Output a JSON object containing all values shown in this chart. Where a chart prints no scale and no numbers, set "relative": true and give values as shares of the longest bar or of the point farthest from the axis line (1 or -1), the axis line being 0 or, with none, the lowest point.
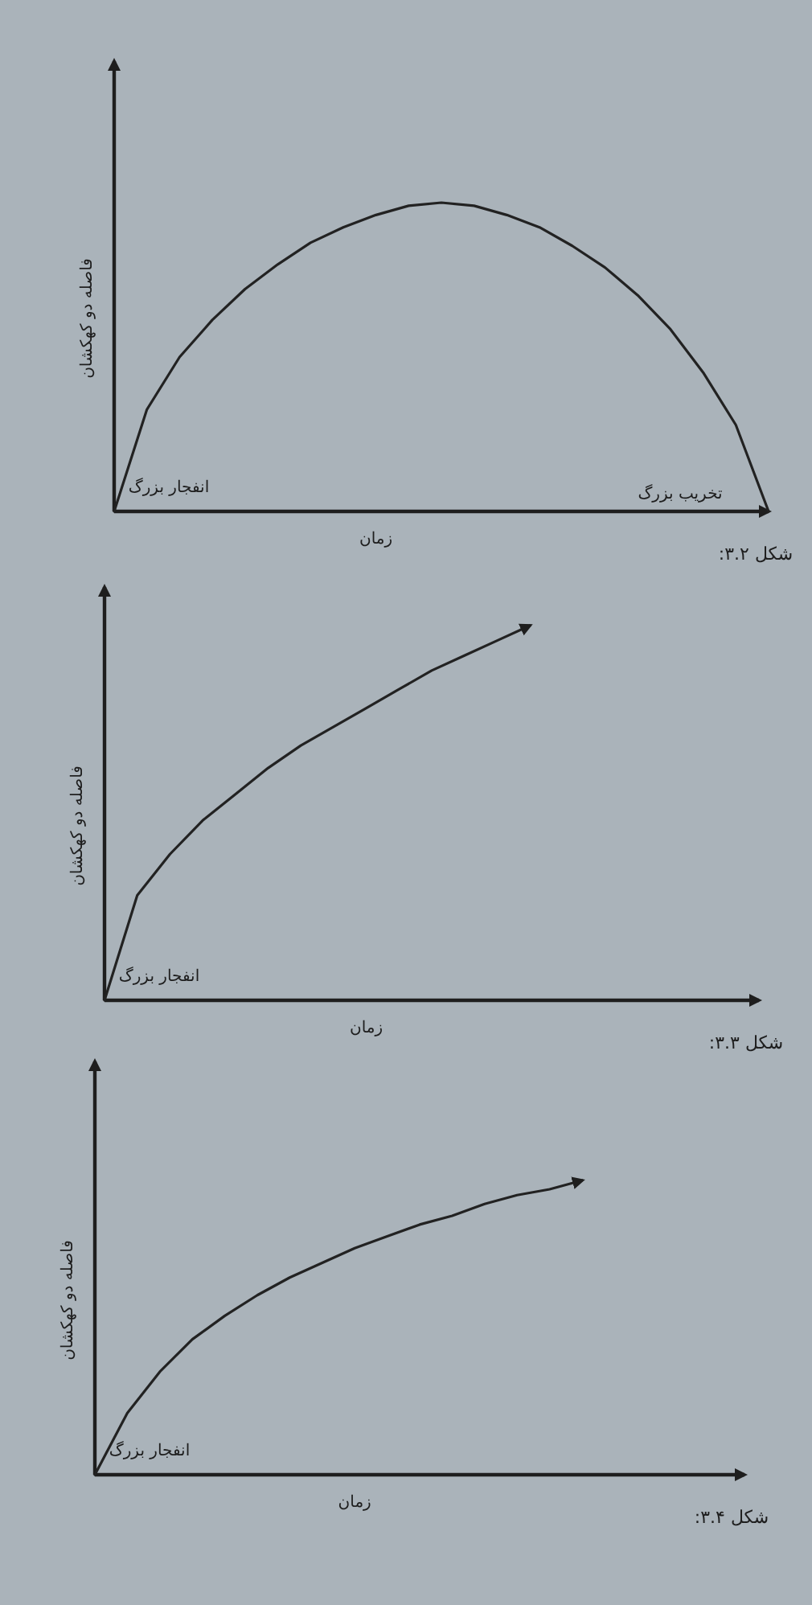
{
  "chart_data": [
    {
      "type": "line",
      "relative": true,
      "xlabel": "زمان",
      "ylabel": "فاصله دو کهکشان",
      "annotations": [
        "انفجار بزرگ",
        "تخریب بزرگ",
        "شکل ۳.۲:"
      ],
      "categories": [
        null,
        null,
        null,
        null,
        null,
        null,
        null,
        null,
        null,
        null,
        null,
        null,
        null,
        null,
        null,
        null,
        null,
        null,
        null,
        null,
        null
      ],
      "series": [
        {
          "color": "#222222",
          "values": [
            0,
            0.33,
            0.5,
            0.62,
            0.72,
            0.8,
            0.87,
            0.92,
            0.96,
            0.99,
            1,
            0.99,
            0.96,
            0.92,
            0.86,
            0.79,
            0.7,
            0.59,
            0.45,
            0.28,
            0
          ]
        }
      ]
    },
    {
      "type": "line",
      "relative": true,
      "xlabel": "زمان",
      "ylabel": "فاصله دو کهکشان",
      "annotations": [
        "انفجار بزرگ",
        "شکل ۳.۳:"
      ],
      "categories": [
        null,
        null,
        null,
        null,
        null,
        null,
        null,
        null,
        null,
        null,
        null,
        null,
        null,
        null,
        null,
        null,
        null,
        null,
        null,
        null,
        null
      ],
      "series": [
        {
          "color": "#222222",
          "values": [
            0,
            0.28,
            0.39,
            0.48,
            0.55,
            0.62,
            0.68,
            0.73,
            0.78,
            0.83,
            0.88,
            0.92,
            0.96,
            1,
            null,
            null,
            null,
            null,
            null,
            null,
            null
          ]
        }
      ]
    },
    {
      "type": "line",
      "relative": true,
      "xlabel": "زمان",
      "ylabel": "فاصله دو کهکشان",
      "annotations": [
        "انفجار بزرگ",
        "شکل ۳.۴:"
      ],
      "categories": [
        null,
        null,
        null,
        null,
        null,
        null,
        null,
        null,
        null,
        null,
        null,
        null,
        null,
        null,
        null,
        null,
        null,
        null,
        null,
        null,
        null
      ],
      "series": [
        {
          "color": "#222222",
          "values": [
            0,
            0.21,
            0.35,
            0.46,
            0.54,
            0.61,
            0.67,
            0.72,
            0.77,
            0.81,
            0.85,
            0.88,
            0.92,
            0.95,
            0.97,
            1,
            null,
            null,
            null,
            null,
            null
          ]
        }
      ]
    }
  ]
}
